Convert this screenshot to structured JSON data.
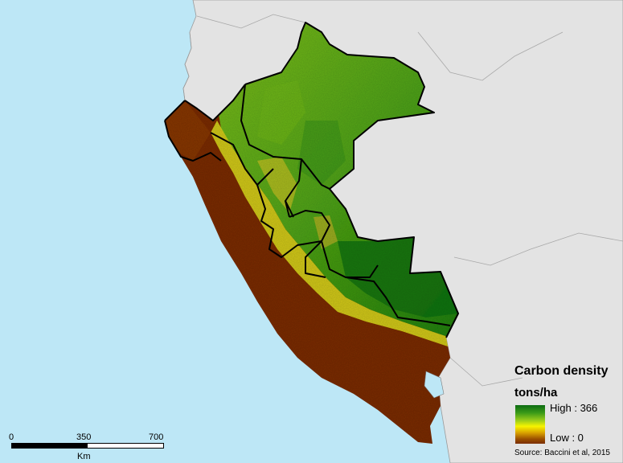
{
  "legend": {
    "title": "Carbon density",
    "unit": "tons/ha",
    "high_label": "High : 366",
    "low_label": "Low : 0",
    "source": "Source: Baccini et al, 2015",
    "colors": [
      "#0b6b12",
      "#3a9a18",
      "#9ccd1a",
      "#f7f400",
      "#d8a000",
      "#9a4e00",
      "#7a2e00"
    ]
  },
  "scale_bar": {
    "ticks": [
      "0",
      "350",
      "700"
    ],
    "unit": "Km"
  },
  "colors": {
    "ocean": "#bde7f6",
    "land_outside": "#e3e3e3",
    "border": "#000000"
  }
}
